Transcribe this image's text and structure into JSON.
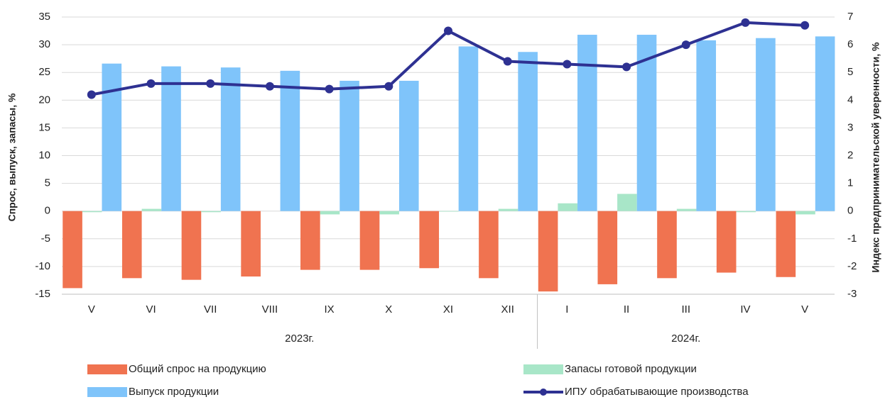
{
  "chart_data": {
    "type": "bar",
    "category_groups": [
      {
        "label": "2023г.",
        "categories": [
          "V",
          "VI",
          "VII",
          "VIII",
          "IX",
          "X",
          "XI",
          "XII"
        ]
      },
      {
        "label": "2024г.",
        "categories": [
          "I",
          "II",
          "III",
          "IV",
          "V"
        ]
      }
    ],
    "series": [
      {
        "name": "Общий спрос на продукцию",
        "type": "bar",
        "color": "#f07350",
        "axis": "y",
        "values": [
          -13.9,
          -12.1,
          -12.4,
          -11.8,
          -10.6,
          -10.6,
          -10.3,
          -12.1,
          -14.5,
          -13.2,
          -12.1,
          -11.1,
          -11.9
        ]
      },
      {
        "name": "Запасы готовой продукции",
        "type": "bar",
        "color": "#a8e6c8",
        "axis": "y",
        "values": [
          -0.2,
          0.4,
          -0.2,
          0,
          -0.6,
          -0.6,
          -0.1,
          0.4,
          1.4,
          3.1,
          0.4,
          -0.2,
          -0.6
        ]
      },
      {
        "name": "Выпуск продукции",
        "type": "bar",
        "color": "#7fc4fa",
        "axis": "y",
        "values": [
          26.6,
          26.1,
          25.9,
          25.3,
          23.5,
          23.5,
          29.7,
          28.7,
          31.8,
          31.8,
          30.8,
          31.2,
          31.5
        ]
      },
      {
        "name": "ИПУ обрабатывающие производства",
        "type": "line",
        "color": "#2e3192",
        "axis": "y2",
        "values": [
          4.2,
          4.6,
          4.6,
          4.5,
          4.4,
          4.5,
          6.5,
          5.4,
          5.3,
          5.2,
          6.0,
          6.8,
          6.7
        ]
      }
    ],
    "ylabel": "Спрос, выпуск, запасы, %",
    "y2label": "Индекс предпринимательской уверенности, %",
    "ylim": [
      -15,
      35
    ],
    "yticks": [
      -15,
      -10,
      -5,
      0,
      5,
      10,
      15,
      20,
      25,
      30,
      35
    ],
    "y2lim": [
      -3,
      7
    ],
    "y2ticks": [
      -3,
      -2,
      -1,
      0,
      1,
      2,
      3,
      4,
      5,
      6,
      7
    ],
    "grid": true,
    "legend": "bottom"
  }
}
